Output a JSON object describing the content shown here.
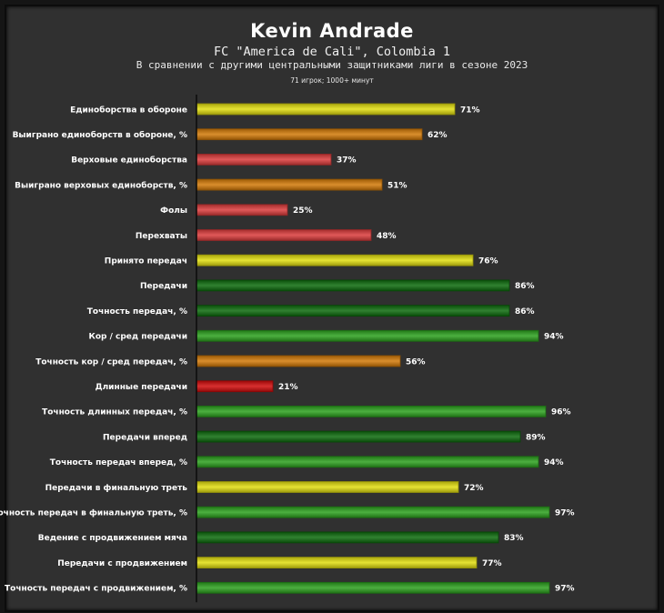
{
  "header": {
    "title": "Kevin Andrade",
    "club": "FC \"America de Cali\", Colombia 1",
    "subtitle": "В сравнении с другими центральными защитниками лиги в сезоне 2023",
    "note": "71 игрок; 1000+ минут"
  },
  "chart_data": {
    "type": "bar",
    "orientation": "horizontal",
    "title": "Kevin Andrade",
    "xlim": [
      0,
      100
    ],
    "value_suffix": "%",
    "categories": [
      "Единоборства в обороне",
      "Выиграно единоборств в обороне, %",
      "Верховые единоборства",
      "Выиграно верховых единоборств, %",
      "Фолы",
      "Перехваты",
      "Принято передач",
      "Передачи",
      "Точность передач, %",
      "Кор / сред передачи",
      "Точность кор / сред передач, %",
      "Длинные передачи",
      "Точность длинных передач, %",
      "Передачи вперед",
      "Точность передач вперед, %",
      "Передачи в финальную треть",
      "Точность передач в финальную треть, %",
      "Ведение с продвижением мяча",
      "Передачи с продвижением",
      "Точность передач с продвижением, %"
    ],
    "values": [
      71,
      62,
      37,
      51,
      25,
      48,
      76,
      86,
      86,
      94,
      56,
      21,
      96,
      89,
      94,
      72,
      97,
      83,
      77,
      97
    ],
    "value_labels": [
      "71%",
      "62%",
      "37%",
      "51%",
      "25%",
      "48%",
      "76%",
      "86%",
      "86%",
      "94%",
      "56%",
      "21%",
      "96%",
      "89%",
      "94%",
      "72%",
      "97%",
      "83%",
      "77%",
      "97%"
    ],
    "colors": [
      "#e2de10",
      "#d27a08",
      "#dc3c3c",
      "#d27a08",
      "#dc3c3c",
      "#dc3c3c",
      "#e2de10",
      "#0d6b0d",
      "#0d6b0d",
      "#2ca11e",
      "#d27a08",
      "#d00c0c",
      "#2ca11e",
      "#0d6b0d",
      "#2ca11e",
      "#e2de10",
      "#2ca11e",
      "#0d6b0d",
      "#e2de10",
      "#2ca11e"
    ],
    "grid": false
  }
}
